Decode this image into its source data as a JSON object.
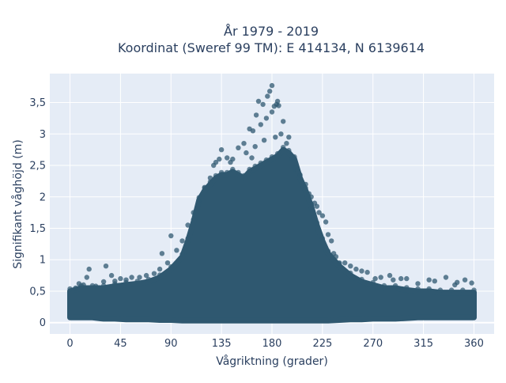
{
  "chart_data": {
    "type": "scatter",
    "title_lines": [
      "År 1979 - 2019",
      "Koordinat (Sweref 99 TM): E 414134, N 6139614"
    ],
    "xlabel": "Vågriktning (grader)",
    "ylabel": "Signifikant våghöjd (m)",
    "xlim": [
      -18,
      378
    ],
    "ylim": [
      -0.18,
      3.96
    ],
    "x_ticks": [
      0,
      45,
      90,
      135,
      180,
      225,
      270,
      315,
      360
    ],
    "x_tick_labels": [
      "0",
      "45",
      "90",
      "135",
      "180",
      "225",
      "270",
      "315",
      "360"
    ],
    "y_ticks": [
      0,
      0.5,
      1,
      1.5,
      2,
      2.5,
      3,
      3.5
    ],
    "y_tick_labels": [
      "0",
      "0,5",
      "1",
      "1,5",
      "2",
      "2,5",
      "3",
      "3,5"
    ],
    "grid": true,
    "colors": {
      "plot_bg": "#e5ecf6",
      "grid": "#ffffff",
      "marker": "#2f5870",
      "text": "#2a3f5f"
    },
    "envelope": {
      "x": [
        0,
        10,
        20,
        30,
        40,
        50,
        60,
        70,
        80,
        90,
        100,
        105,
        110,
        115,
        120,
        125,
        130,
        135,
        140,
        145,
        150,
        155,
        160,
        165,
        170,
        175,
        180,
        185,
        190,
        195,
        200,
        205,
        210,
        215,
        220,
        225,
        230,
        240,
        250,
        260,
        270,
        280,
        290,
        300,
        310,
        320,
        330,
        340,
        350,
        360
      ],
      "y_max": [
        0.5,
        0.55,
        0.55,
        0.55,
        0.58,
        0.6,
        0.62,
        0.65,
        0.72,
        0.85,
        1.05,
        1.3,
        1.6,
        1.95,
        2.1,
        2.2,
        2.3,
        2.35,
        2.35,
        2.4,
        2.35,
        2.3,
        2.4,
        2.45,
        2.5,
        2.55,
        2.6,
        2.65,
        2.75,
        2.7,
        2.6,
        2.3,
        2.1,
        1.85,
        1.55,
        1.3,
        1.1,
        0.9,
        0.75,
        0.65,
        0.6,
        0.55,
        0.55,
        0.52,
        0.5,
        0.5,
        0.48,
        0.48,
        0.48,
        0.48
      ],
      "y_min": [
        0.08,
        0.08,
        0.08,
        0.06,
        0.06,
        0.05,
        0.05,
        0.05,
        0.04,
        0.04,
        0.03,
        0.03,
        0.03,
        0.03,
        0.03,
        0.03,
        0.03,
        0.03,
        0.03,
        0.03,
        0.03,
        0.03,
        0.03,
        0.03,
        0.03,
        0.03,
        0.03,
        0.03,
        0.03,
        0.03,
        0.03,
        0.03,
        0.03,
        0.03,
        0.03,
        0.03,
        0.03,
        0.04,
        0.05,
        0.05,
        0.06,
        0.06,
        0.06,
        0.07,
        0.08,
        0.08,
        0.08,
        0.08,
        0.08,
        0.08
      ]
    },
    "points": [
      [
        180,
        3.77
      ],
      [
        178,
        3.68
      ],
      [
        185,
        3.52
      ],
      [
        176,
        3.6
      ],
      [
        168,
        3.52
      ],
      [
        184,
        3.47
      ],
      [
        182,
        3.44
      ],
      [
        186,
        3.45
      ],
      [
        172,
        3.47
      ],
      [
        180,
        3.35
      ],
      [
        166,
        3.3
      ],
      [
        175,
        3.25
      ],
      [
        190,
        3.2
      ],
      [
        170,
        3.15
      ],
      [
        160,
        3.08
      ],
      [
        163,
        3.05
      ],
      [
        188,
        3.0
      ],
      [
        195,
        2.95
      ],
      [
        183,
        2.95
      ],
      [
        173,
        2.9
      ],
      [
        155,
        2.85
      ],
      [
        150,
        2.78
      ],
      [
        135,
        2.75
      ],
      [
        165,
        2.8
      ],
      [
        145,
        2.6
      ],
      [
        140,
        2.62
      ],
      [
        133,
        2.6
      ],
      [
        130,
        2.55
      ],
      [
        128,
        2.5
      ],
      [
        198,
        2.6
      ],
      [
        200,
        2.45
      ],
      [
        210,
        2.2
      ],
      [
        215,
        2.0
      ],
      [
        220,
        1.85
      ],
      [
        225,
        1.7
      ],
      [
        230,
        1.4
      ],
      [
        233,
        1.3
      ],
      [
        228,
        1.6
      ],
      [
        235,
        1.1
      ],
      [
        240,
        0.95
      ],
      [
        245,
        0.95
      ],
      [
        255,
        0.85
      ],
      [
        265,
        0.8
      ],
      [
        285,
        0.75
      ],
      [
        300,
        0.7
      ],
      [
        320,
        0.68
      ],
      [
        335,
        0.72
      ],
      [
        352,
        0.68
      ],
      [
        358,
        0.63
      ],
      [
        343,
        0.6
      ],
      [
        310,
        0.62
      ],
      [
        288,
        0.68
      ],
      [
        272,
        0.7
      ],
      [
        30,
        0.65
      ],
      [
        23,
        0.58
      ],
      [
        8,
        0.62
      ],
      [
        15,
        0.72
      ],
      [
        17,
        0.85
      ],
      [
        32,
        0.9
      ],
      [
        37,
        0.75
      ],
      [
        45,
        0.7
      ],
      [
        55,
        0.72
      ],
      [
        62,
        0.72
      ],
      [
        68,
        0.75
      ],
      [
        75,
        0.78
      ],
      [
        82,
        1.1
      ],
      [
        90,
        1.38
      ],
      [
        95,
        1.15
      ],
      [
        100,
        1.3
      ],
      [
        105,
        1.55
      ],
      [
        110,
        1.75
      ],
      [
        115,
        1.95
      ],
      [
        120,
        2.15
      ],
      [
        125,
        2.3
      ],
      [
        143,
        2.55
      ],
      [
        157,
        2.7
      ],
      [
        162,
        2.62
      ],
      [
        193,
        2.85
      ],
      [
        205,
        2.35
      ],
      [
        213,
        2.05
      ],
      [
        218,
        1.9
      ],
      [
        222,
        1.75
      ],
      [
        237,
        1.05
      ],
      [
        250,
        0.9
      ],
      [
        260,
        0.82
      ],
      [
        277,
        0.72
      ],
      [
        295,
        0.7
      ],
      [
        325,
        0.66
      ],
      [
        345,
        0.64
      ],
      [
        5,
        0.55
      ],
      [
        12,
        0.6
      ],
      [
        40,
        0.66
      ],
      [
        50,
        0.68
      ],
      [
        80,
        0.85
      ],
      [
        87,
        0.95
      ]
    ]
  }
}
